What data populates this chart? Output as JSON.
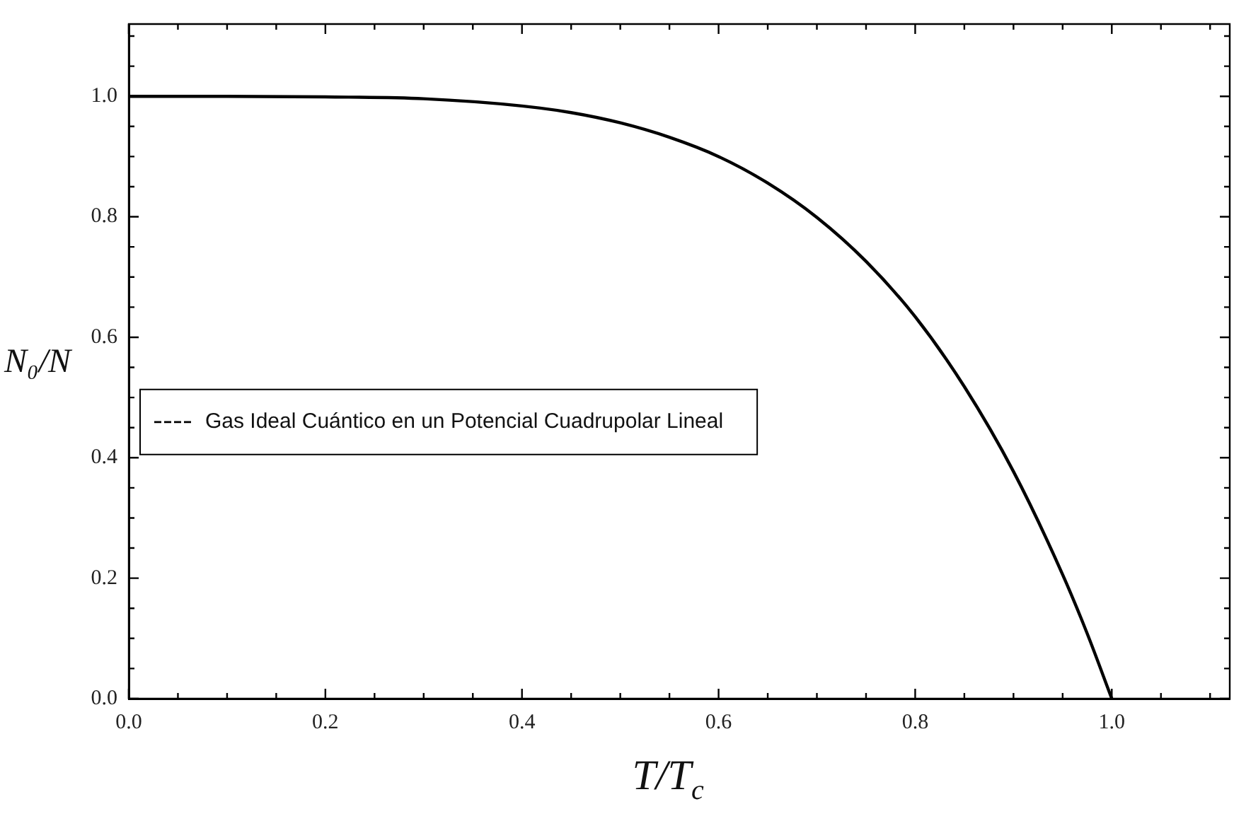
{
  "chart_data": {
    "type": "line",
    "xlabel": "T/T$_{c}$",
    "ylabel": "N₀/N",
    "x": [
      0,
      0.1,
      0.2,
      0.3,
      0.4,
      0.45,
      0.5,
      0.55,
      0.6,
      0.65,
      0.7,
      0.75,
      0.8,
      0.85,
      0.9,
      0.95,
      0.975,
      1
    ],
    "series": [
      {
        "name": "Gas Ideal Cuántico en un Potencial Cuadrupolar Lineal",
        "color": "#000000",
        "values": [
          1,
          1,
          0.999,
          0.996,
          0.984,
          0.973,
          0.956,
          0.932,
          0.9,
          0.856,
          0.799,
          0.726,
          0.634,
          0.518,
          0.377,
          0.206,
          0.108,
          0
        ]
      }
    ],
    "xlim": [
      0,
      1.12
    ],
    "ylim": [
      0,
      1.12
    ],
    "xticks": [
      {
        "value": 0,
        "label": "0.0"
      },
      {
        "value": 0.05,
        "label": null
      },
      {
        "value": 0.1,
        "label": null
      },
      {
        "value": 0.15,
        "label": null
      },
      0.2,
      {
        "value": 0.25,
        "label": null
      },
      {
        "value": 0.3,
        "label": null
      },
      {
        "value": 0.35,
        "label": null
      },
      0.4,
      {
        "value": 0.45,
        "label": null
      },
      {
        "value": 0.5,
        "label": null
      },
      {
        "value": 0.55,
        "label": null
      },
      0.6,
      {
        "value": 0.65,
        "label": null
      },
      {
        "value": 0.7,
        "label": null
      },
      {
        "value": 0.75,
        "label": null
      },
      0.8,
      {
        "value": 0.85,
        "label": null
      },
      {
        "value": 0.9,
        "label": null
      },
      {
        "value": 0.95,
        "label": null
      },
      {
        "value": 1,
        "label": "1.0"
      },
      {
        "value": 1.05,
        "label": null
      },
      {
        "value": 1.1,
        "label": null
      }
    ],
    "yticks": [
      {
        "value": 0,
        "label": "0.0"
      },
      {
        "value": 0.05,
        "label": null
      },
      {
        "value": 0.1,
        "label": null
      },
      {
        "value": 0.15,
        "label": null
      },
      0.2,
      {
        "value": 0.25,
        "label": null
      },
      {
        "value": 0.3,
        "label": null
      },
      {
        "value": 0.35,
        "label": null
      },
      0.4,
      {
        "value": 0.45,
        "label": null
      },
      {
        "value": 0.5,
        "label": null
      },
      {
        "value": 0.55,
        "label": null
      },
      0.6,
      {
        "value": 0.65,
        "label": null
      },
      {
        "value": 0.7,
        "label": null
      },
      {
        "value": 0.75,
        "label": null
      },
      0.8,
      {
        "value": 0.85,
        "label": null
      },
      {
        "value": 0.9,
        "label": null
      },
      {
        "value": 0.95,
        "label": null
      },
      {
        "value": 1,
        "label": "1.0"
      },
      {
        "value": 1.05,
        "label": null
      },
      {
        "value": 1.1,
        "label": null
      }
    ],
    "legend": "left",
    "marker": "none",
    "line_style": "solid"
  }
}
